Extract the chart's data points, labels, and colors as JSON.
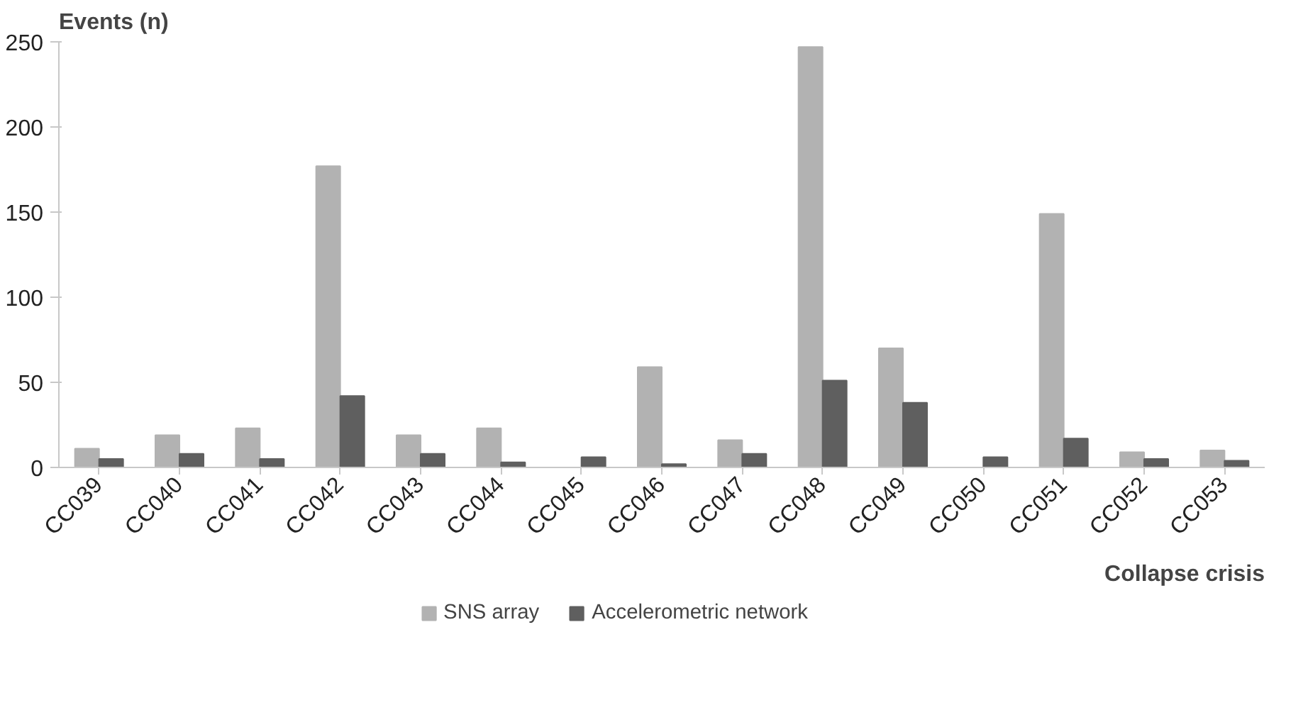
{
  "chart_data": {
    "type": "bar",
    "xlabel": "Collapse crisis",
    "ylabel": "Events (n)",
    "categories": [
      "CC039",
      "CC040",
      "CC041",
      "CC042",
      "CC043",
      "CC044",
      "CC045",
      "CC046",
      "CC047",
      "CC048",
      "CC049",
      "CC050",
      "CC051",
      "CC052",
      "CC053"
    ],
    "series": [
      {
        "name": "SNS array",
        "color": "#b2b2b2",
        "values": [
          11,
          19,
          23,
          177,
          19,
          23,
          0,
          59,
          16,
          247,
          70,
          0,
          149,
          9,
          10
        ]
      },
      {
        "name": "Accelerometric network",
        "color": "#5f5f5f",
        "values": [
          5,
          8,
          5,
          42,
          8,
          3,
          6,
          2,
          8,
          51,
          38,
          6,
          17,
          5,
          4
        ]
      }
    ],
    "ylim": [
      0,
      250
    ],
    "yticks": [
      0,
      50,
      100,
      150,
      200,
      250
    ],
    "grid": false,
    "legend": "bottom"
  }
}
